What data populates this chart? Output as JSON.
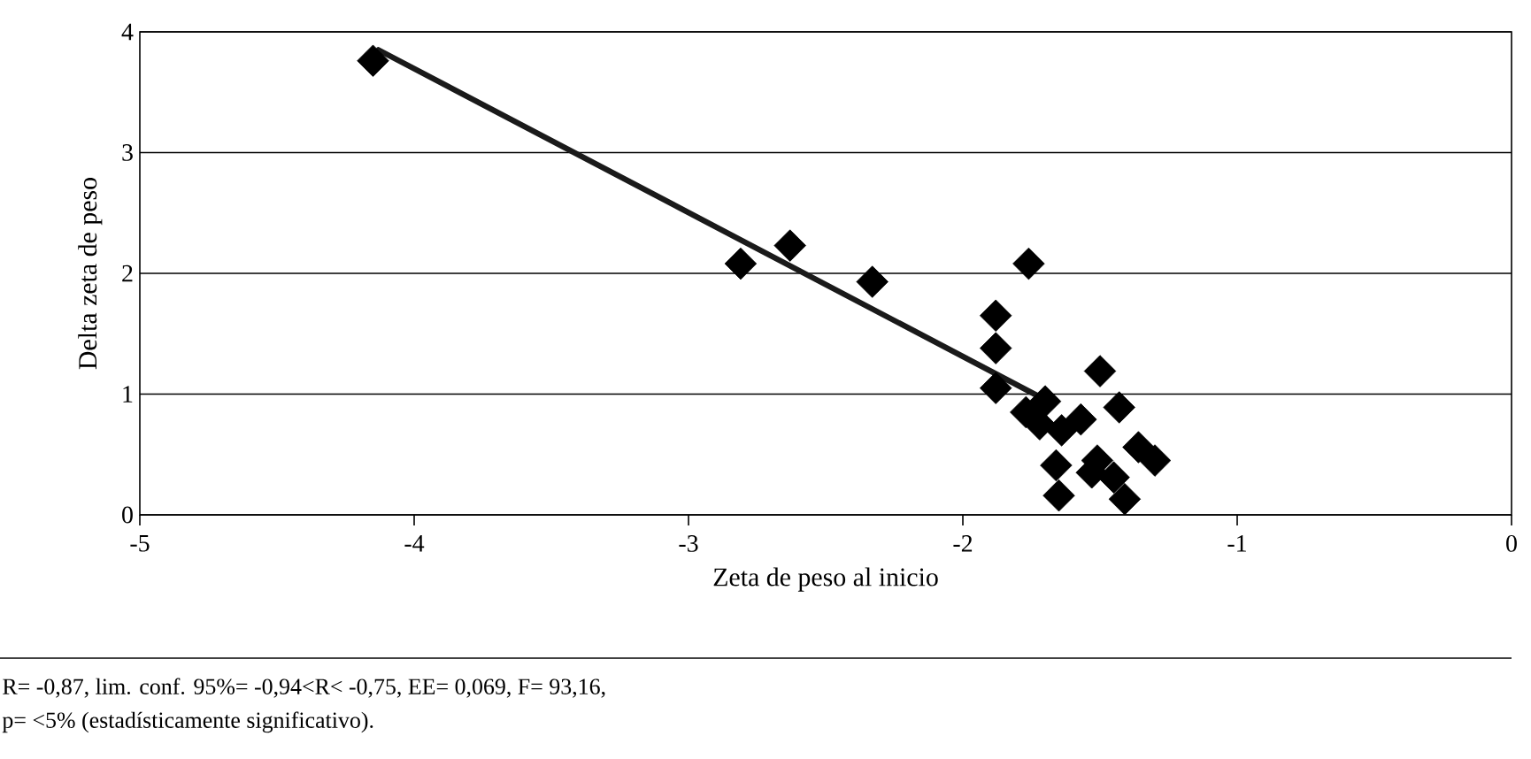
{
  "chart_data": {
    "type": "scatter",
    "xlabel": "Zeta de peso al inicio",
    "ylabel": "Delta zeta de peso",
    "xlim": [
      -5,
      0
    ],
    "ylim": [
      0,
      4
    ],
    "xticks": [
      -5,
      -4,
      -3,
      -2,
      -1,
      0
    ],
    "yticks": [
      0,
      1,
      2,
      3,
      4
    ],
    "grid": "y",
    "series": [
      {
        "marker": "diamond",
        "color": "#000000",
        "x": [
          -4.15,
          -2.81,
          -2.63,
          -2.33,
          -1.76,
          -1.88,
          -1.88,
          -1.88,
          -1.5,
          -1.43,
          -1.7,
          -1.77,
          -1.64,
          -1.57,
          -1.3,
          -1.36,
          -1.51,
          -1.66,
          -1.65,
          -1.41,
          -1.53,
          -1.45,
          -1.72
        ],
        "values": [
          3.76,
          2.08,
          2.23,
          1.93,
          2.08,
          1.65,
          1.38,
          1.05,
          1.19,
          0.89,
          0.94,
          0.85,
          0.7,
          0.79,
          0.45,
          0.56,
          0.45,
          0.41,
          0.16,
          0.13,
          0.35,
          0.31,
          0.75
        ]
      },
      {
        "type": "line",
        "color": "#1a1a1a",
        "line_style": "solid",
        "x": [
          -4.13,
          -1.68
        ],
        "values": [
          3.85,
          0.93
        ]
      }
    ],
    "annotations": [
      "R= -0,87, lim. conf. 95%= -0,94<R< -0,75, EE= 0,069, F= 93,16,",
      "p= <5% (estadísticamente significativo)."
    ]
  }
}
